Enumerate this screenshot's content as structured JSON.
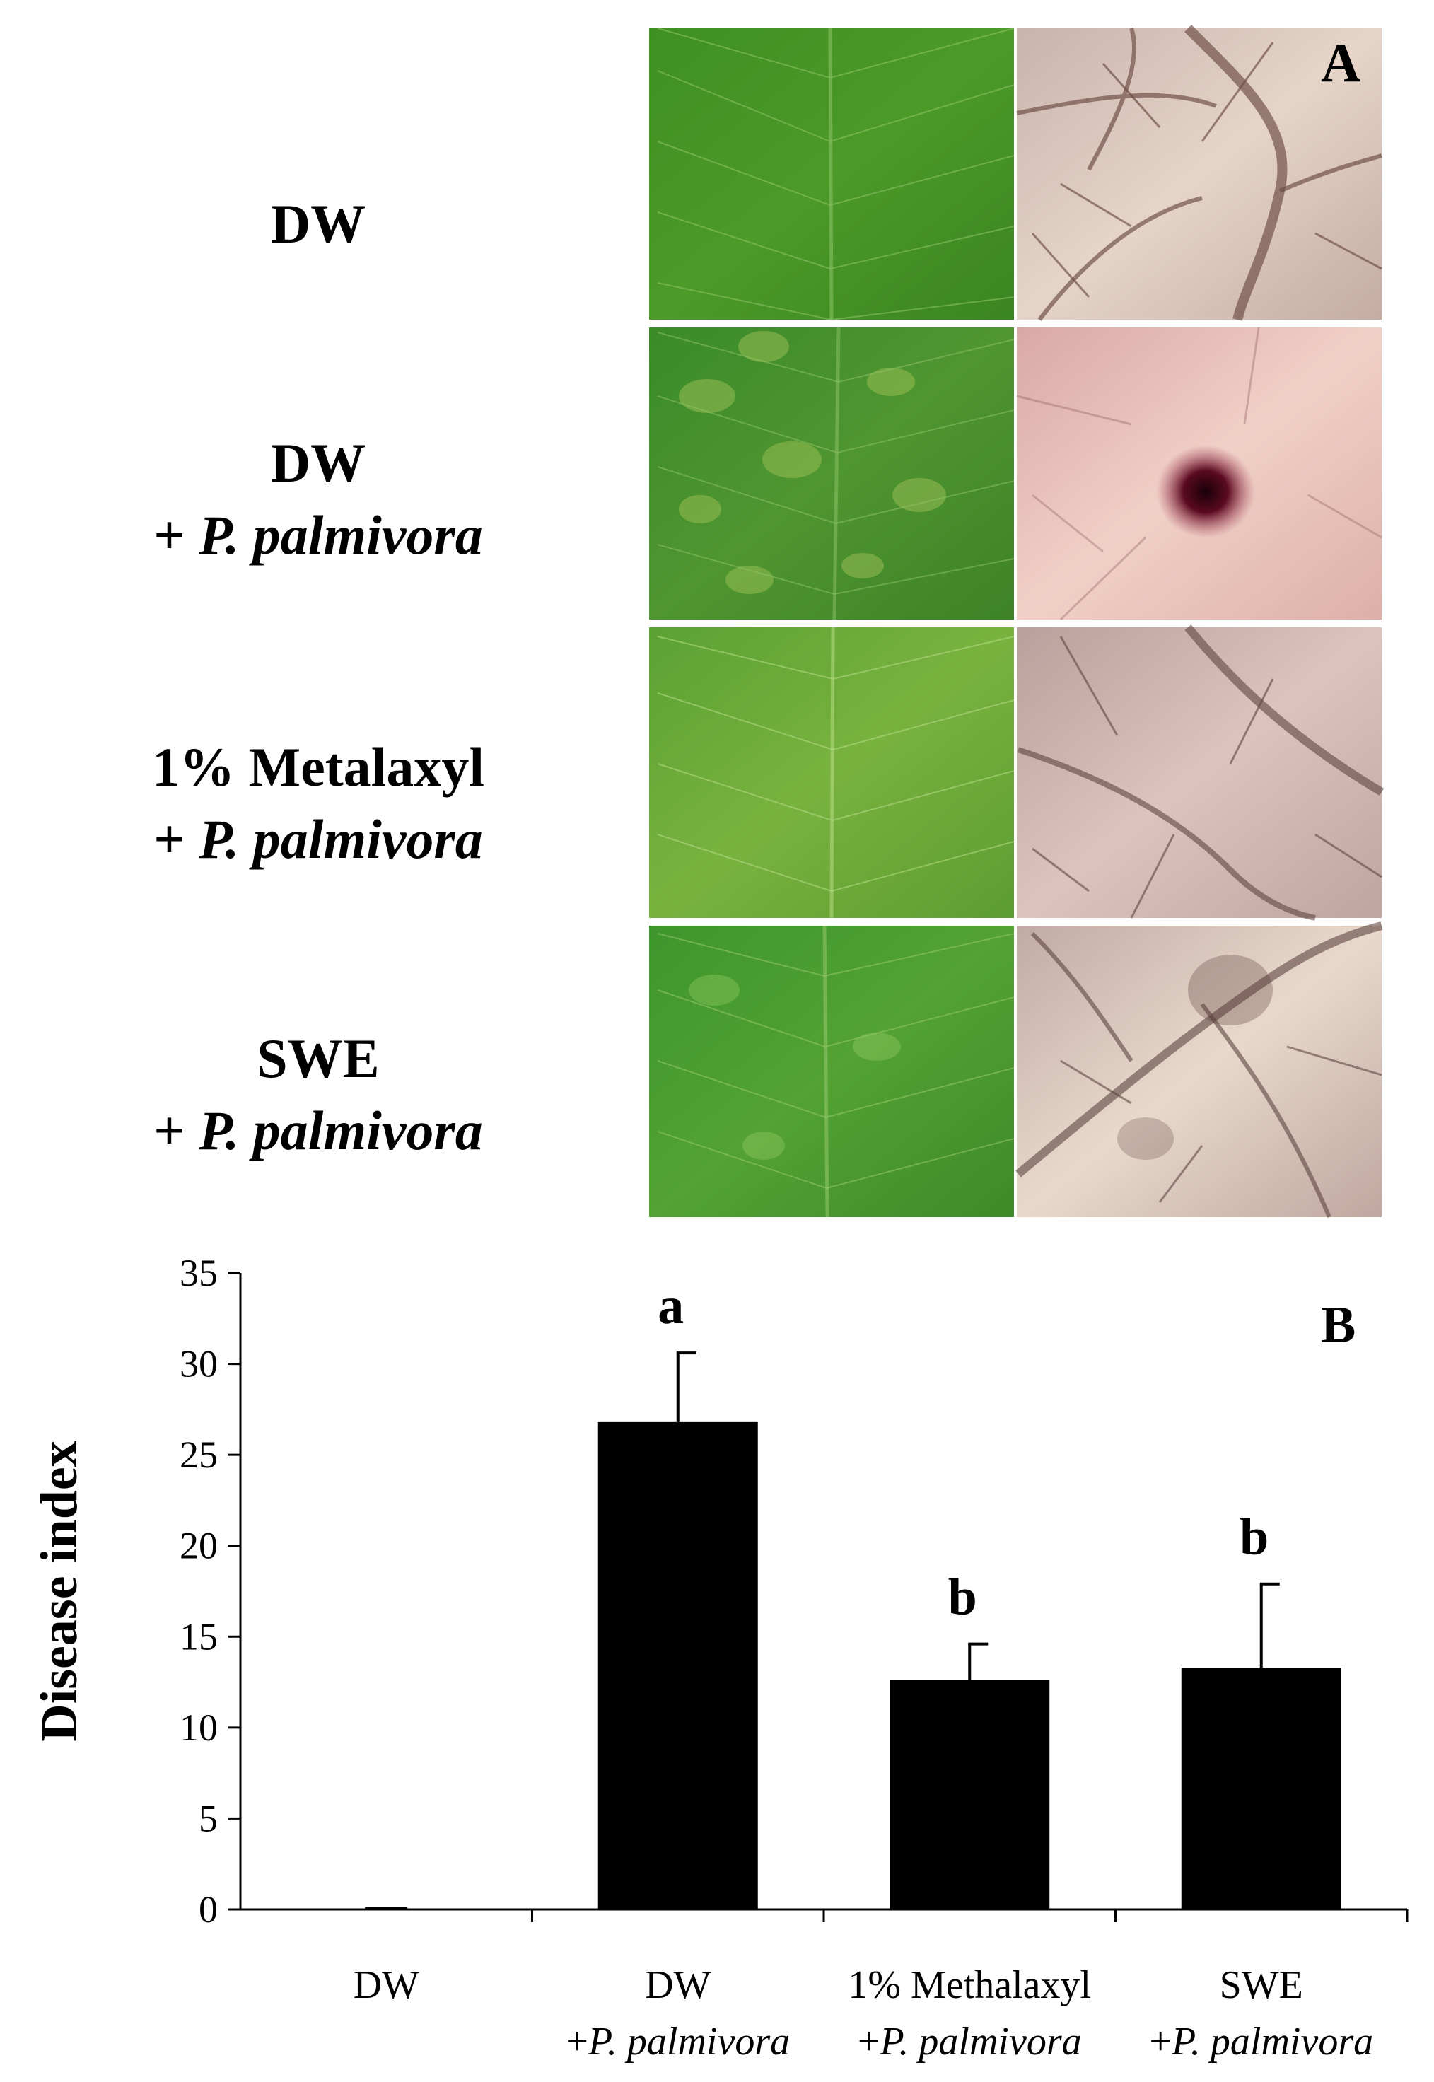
{
  "panel_a": {
    "letter": "A",
    "rows": [
      {
        "line1": "DW",
        "line2_prefix": "",
        "line2_italic": ""
      },
      {
        "line1": "DW",
        "line2_prefix": "+ ",
        "line2_italic": "P. palmivora"
      },
      {
        "line1": "1% Metalaxyl",
        "line2_prefix": "+ ",
        "line2_italic": "P. palmivora"
      },
      {
        "line1": "SWE",
        "line2_prefix": "+ ",
        "line2_italic": "P. palmivora"
      }
    ]
  },
  "chart_data": {
    "type": "bar",
    "panel_letter": "B",
    "ylabel": "Disease index",
    "xlabel": "",
    "ylim": [
      0,
      35
    ],
    "yticks": [
      0,
      5,
      10,
      15,
      20,
      25,
      30,
      35
    ],
    "categories": [
      {
        "line1": "DW",
        "line2_prefix": "",
        "line2_italic": ""
      },
      {
        "line1": "DW",
        "line2_prefix": "+",
        "line2_italic": "P. palmivora"
      },
      {
        "line1": "1% Methalaxyl",
        "line2_prefix": "+",
        "line2_italic": "P. palmivora"
      },
      {
        "line1": "SWE",
        "line2_prefix": "+",
        "line2_italic": "P. palmivora"
      }
    ],
    "values": [
      0,
      26.8,
      12.6,
      13.3
    ],
    "errors": [
      0,
      3.8,
      2.0,
      4.6
    ],
    "significance_letters": [
      "",
      "a",
      "b",
      "b"
    ],
    "bar_color": "#000000"
  }
}
